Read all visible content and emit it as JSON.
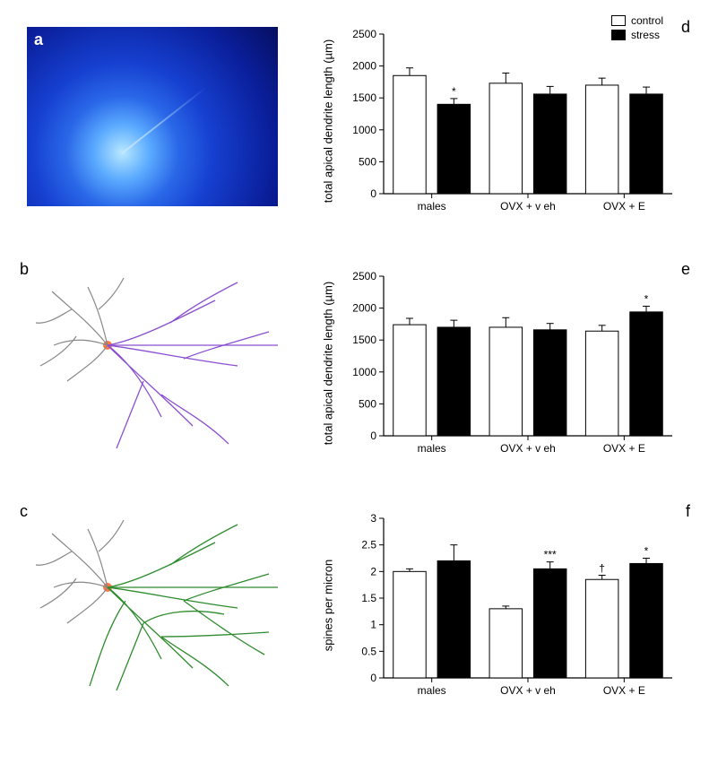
{
  "panels": {
    "a": "a",
    "b": "b",
    "c": "c",
    "d": "d",
    "e": "e",
    "f": "f"
  },
  "legend": {
    "control": "control",
    "stress": "stress"
  },
  "categories": [
    "males",
    "OVX + v eh",
    "OVX + E"
  ],
  "chart_d": {
    "ylabel": "total apical dendrite length (µm)",
    "ylim": [
      0,
      2500
    ],
    "ytick_step": 500,
    "title_fontsize": 13,
    "bar_colors": {
      "control": "#ffffff",
      "stress": "#000000"
    },
    "border_color": "#000000",
    "data": {
      "control": [
        1850,
        1730,
        1700
      ],
      "stress": [
        1400,
        1560,
        1560
      ],
      "err_control": [
        120,
        160,
        110
      ],
      "err_stress": [
        90,
        120,
        110
      ]
    },
    "sig": [
      [
        "",
        "*"
      ],
      [
        "",
        ""
      ],
      [
        "",
        ""
      ]
    ]
  },
  "chart_e": {
    "ylabel": "total apical dendrite length (µm)",
    "ylim": [
      0,
      2500
    ],
    "ytick_step": 500,
    "bar_colors": {
      "control": "#ffffff",
      "stress": "#000000"
    },
    "border_color": "#000000",
    "data": {
      "control": [
        1740,
        1700,
        1640
      ],
      "stress": [
        1700,
        1660,
        1940
      ],
      "err_control": [
        100,
        150,
        90
      ],
      "err_stress": [
        110,
        100,
        90
      ]
    },
    "sig": [
      [
        "",
        ""
      ],
      [
        "",
        ""
      ],
      [
        "",
        "*"
      ]
    ]
  },
  "chart_f": {
    "ylabel": "spines per micron",
    "ylim": [
      0,
      3
    ],
    "ytick_step": 0.5,
    "bar_colors": {
      "control": "#ffffff",
      "stress": "#000000"
    },
    "border_color": "#000000",
    "data": {
      "control": [
        2.0,
        1.3,
        1.85
      ],
      "stress": [
        2.2,
        2.05,
        2.15
      ],
      "err_control": [
        0.05,
        0.05,
        0.08
      ],
      "err_stress": [
        0.3,
        0.13,
        0.1
      ]
    },
    "sig": [
      [
        "",
        ""
      ],
      [
        "",
        "***"
      ],
      [
        "†",
        "*"
      ]
    ]
  },
  "trace_b": {
    "color": "#8a4fd0",
    "soma_color": "#888888",
    "cell_color": "#ff7744"
  },
  "trace_c": {
    "color": "#2e8b2e",
    "soma_color": "#888888",
    "cell_color": "#ff7744"
  },
  "style": {
    "background_color": "#ffffff",
    "axis_color": "#000000",
    "bar_width": 0.34,
    "group_gap": 0.12,
    "font_family": "Arial",
    "tick_fontsize": 12,
    "label_fontsize": 13,
    "panel_letter_fontsize": 18
  }
}
